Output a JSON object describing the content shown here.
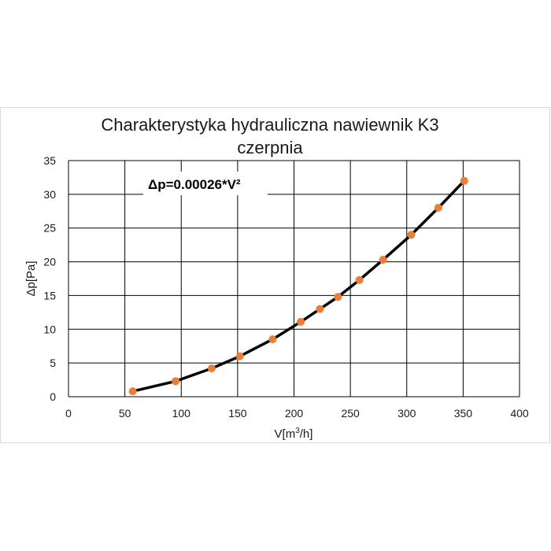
{
  "chart_data": {
    "type": "scatter",
    "title_lines": [
      "Charakterystyka hydrauliczna nawiewnik K3",
      "czerpnia"
    ],
    "xlabel": {
      "text": "V[m",
      "sup": "3",
      "tail": "/h]"
    },
    "ylabel": "Δp[Pa]",
    "annotation": "Δp=0.00026*V²",
    "xlim": [
      0,
      400
    ],
    "ylim": [
      0,
      35
    ],
    "x_ticks": [
      0,
      50,
      100,
      150,
      200,
      250,
      300,
      350,
      400
    ],
    "y_ticks": [
      0,
      5,
      10,
      15,
      20,
      25,
      30,
      35
    ],
    "x_tick_labels": [
      "0",
      "50",
      "100",
      "150",
      "200",
      "250",
      "300",
      "350",
      "400"
    ],
    "y_tick_labels": [
      "0",
      "5",
      "10",
      "15",
      "20",
      "25",
      "30",
      "35"
    ],
    "grid": true,
    "legend": "none",
    "series": [
      {
        "x": [
          57,
          95,
          127,
          152,
          181,
          206,
          223,
          239,
          258,
          279,
          304,
          328,
          351
        ],
        "y": [
          0.8,
          2.3,
          4.2,
          6.0,
          8.5,
          11.1,
          13.0,
          14.8,
          17.3,
          20.3,
          24.0,
          28.0,
          32.0
        ],
        "marker_color": "#ed7d31",
        "line_color": "#000000"
      }
    ]
  }
}
